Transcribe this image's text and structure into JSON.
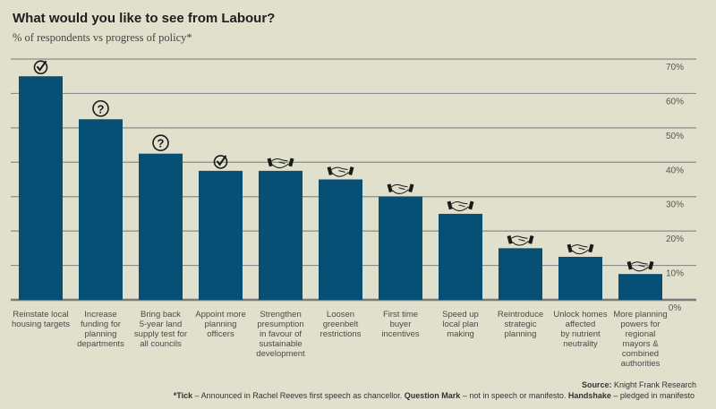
{
  "chart_data": {
    "type": "bar",
    "title": "What would you like to see from Labour?",
    "subtitle": "% of respondents vs progress of policy*",
    "xlabel": "",
    "ylabel": "",
    "ylim": [
      0,
      70
    ],
    "yticks": [
      "0%",
      "10%",
      "20%",
      "30%",
      "40%",
      "50%",
      "60%",
      "70%"
    ],
    "ytick_values": [
      0,
      10,
      20,
      30,
      40,
      50,
      60,
      70
    ],
    "grid": true,
    "bar_color": "#064f75",
    "categories": [
      "Reinstate local housing targets",
      "Increase funding for planning departments",
      "Bring back 5-year land supply test for all councils",
      "Appoint more planning officers",
      "Strengthen presumption in favour of sustainable development",
      "Loosen greenbelt restrictions",
      "First time buyer incentives",
      "Speed up local plan making",
      "Reintroduce strategic planning",
      "Unlock homes affected by nutrient neutrality",
      "More planning powers for regional mayors & combined authorities"
    ],
    "category_lines": [
      [
        "Reinstate local",
        "housing targets"
      ],
      [
        "Increase",
        "funding for",
        "planning",
        "departments"
      ],
      [
        "Bring back",
        "5-year land",
        "supply test for",
        "all councils"
      ],
      [
        "Appoint more",
        "planning",
        "officers"
      ],
      [
        "Strengthen",
        "presumption",
        "in favour of",
        "sustainable",
        "development"
      ],
      [
        "Loosen",
        "greenbelt",
        "restrictions"
      ],
      [
        "First time",
        "buyer",
        "incentives"
      ],
      [
        "Speed up",
        "local plan",
        "making"
      ],
      [
        "Reintroduce",
        "strategic",
        "planning"
      ],
      [
        "Unlock homes",
        "affected",
        "by nutrient",
        "neutrality"
      ],
      [
        "More planning",
        "powers for",
        "regional",
        "mayors &",
        "combined",
        "authorities"
      ]
    ],
    "values": [
      65,
      52.5,
      42.5,
      37.5,
      37.5,
      35,
      30,
      25,
      15,
      12.5,
      7.5
    ],
    "markers": [
      "tick",
      "question-mark",
      "question-mark",
      "tick",
      "handshake",
      "handshake",
      "handshake",
      "handshake",
      "handshake",
      "handshake",
      "handshake"
    ],
    "legend": "bottom-right"
  },
  "footer": {
    "source_label": "Source:",
    "source_text": " Knight Frank Research",
    "note_parts": [
      {
        "bold": true,
        "text": "*Tick"
      },
      {
        "bold": false,
        "text": " – Announced in Rachel Reeves first speech as chancellor. "
      },
      {
        "bold": true,
        "text": "Question Mark"
      },
      {
        "bold": false,
        "text": " – not in speech or manifesto. "
      },
      {
        "bold": true,
        "text": "Handshake"
      },
      {
        "bold": false,
        "text": " – pledged in manifesto"
      }
    ]
  }
}
